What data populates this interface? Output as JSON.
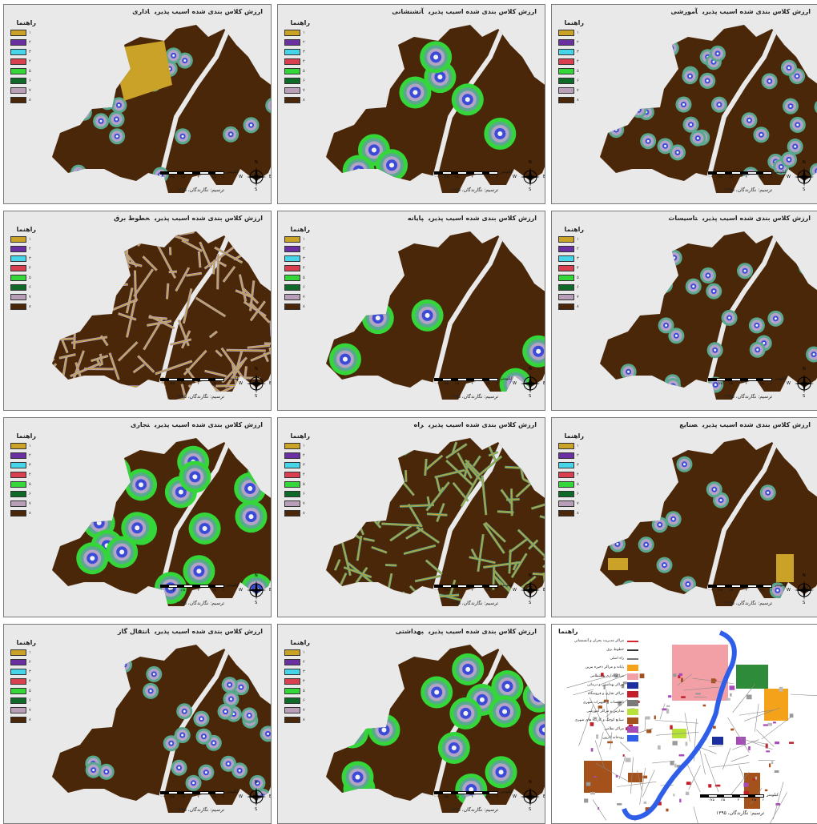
{
  "legend_title": "راهنما",
  "legend_labels": [
    "۱",
    "۲",
    "۳",
    "۴",
    "۵",
    "۶",
    "۷",
    "۸"
  ],
  "legend_colors": [
    "#c9a227",
    "#6a2fa0",
    "#47d3e8",
    "#d8404f",
    "#34d63a",
    "#0f6a2a",
    "#b89fb7",
    "#4a2708"
  ],
  "map_colors": {
    "base": "#4a2708",
    "ring_green": "#34d63a",
    "ring_teal": "#5aa88e",
    "ring_violet": "#b3a3c6",
    "ring_cyan": "#47d3e8",
    "core_blue": "#3b4bd8",
    "gold": "#c9a227",
    "white": "#f4f4f4"
  },
  "scale_ticks": [
    "۰",
    "۰/۷۵",
    "۱/۵",
    "",
    "۳",
    "",
    "۴/۵",
    "۶"
  ],
  "scale_unit": "کیلومتر",
  "credit": "ترسیم: نگارندگان، ۱۳۹۵",
  "compass": {
    "n": "N",
    "s": "S",
    "e": "E",
    "w": "W"
  },
  "panels": [
    {
      "title": "ارزش کلاس بندی شده اسیب پذیری",
      "subtitle": "اداری",
      "icon": "admin-map"
    },
    {
      "title": "ارزش کلاس بندی شده اسیب پذیری",
      "subtitle": "آتشنشانی",
      "icon": "fire-map"
    },
    {
      "title": "ارزش کلاس بندی شده اسیب پذیری",
      "subtitle": "آموزشی",
      "icon": "education-map"
    },
    {
      "title": "ارزش کلاس بندی شده اسیب پذیری",
      "subtitle": "خطوط برق",
      "icon": "power-map"
    },
    {
      "title": "ارزش کلاس بندی شده اسیب پذیری",
      "subtitle": "پایانه",
      "icon": "terminal-map"
    },
    {
      "title": "ارزش کلاس بندی شده اسیب پذیری",
      "subtitle": "تاسیسات",
      "icon": "facilities-map"
    },
    {
      "title": "ارزش کلاس بندی شده اسیب پذیری",
      "subtitle": "تجاری",
      "icon": "commercial-map"
    },
    {
      "title": "ارزش کلاس بندی شده اسیب پذیری",
      "subtitle": "راه",
      "icon": "road-map"
    },
    {
      "title": "ارزش کلاس بندی شده اسیب پذیری",
      "subtitle": "صنایع",
      "icon": "industry-map"
    },
    {
      "title": "ارزش کلاس بندی شده اسیب پذیری",
      "subtitle": "انتقال گاز",
      "icon": "gas-map"
    },
    {
      "title": "ارزش کلاس بندی شده اسیب پذیری",
      "subtitle": "بهداشتی",
      "icon": "health-map"
    }
  ],
  "base_map": {
    "legend_title": "راهنما",
    "items": [
      {
        "label": "مراکز مدیریت بحران و آتشنشانی",
        "color": "#d4232b"
      },
      {
        "label": "خطوط برق",
        "color": "#333333"
      },
      {
        "label": "راه اصلی",
        "color": "#777777"
      },
      {
        "label": "پایانه و مراکز ذخیره بنزین",
        "color": "#f5a21b"
      },
      {
        "label": "مراکز اداری و انتظامی",
        "color": "#f2a0a6"
      },
      {
        "label": "مراکز بهداشتی و درمانی",
        "color": "#1c2fa0"
      },
      {
        "label": "مراکز تجاری و فروشگاه",
        "color": "#c21f2b"
      },
      {
        "label": "تاسیسات و تجهیزات شهری",
        "color": "#7a7a7a"
      },
      {
        "label": "مدارس و مراکز آموزشی",
        "color": "#b6e23a"
      },
      {
        "label": "صنایع کوچک و کارگاه های شهری",
        "color": "#a5511b"
      },
      {
        "label": "مراکز نظامی",
        "color": "#a64ab8"
      },
      {
        "label": "رودخانه کارون",
        "color": "#2f5ee8"
      }
    ]
  }
}
